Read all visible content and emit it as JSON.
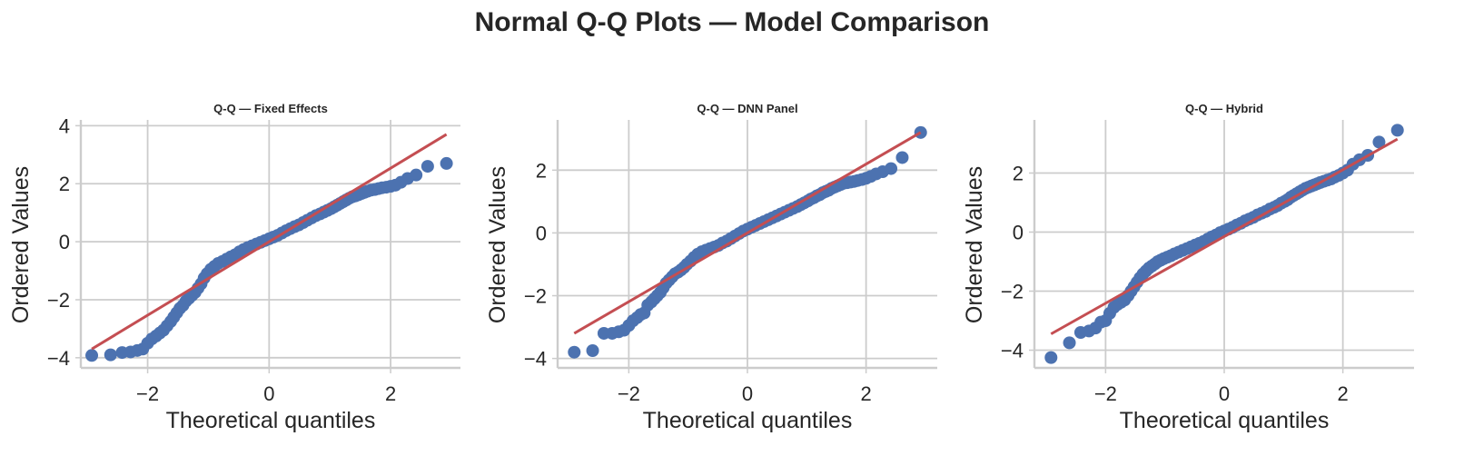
{
  "figure": {
    "suptitle": "Normal Q-Q Plots — Model Comparison",
    "marker_color": "#4c72b0",
    "line_color": "#c44e52",
    "grid_color": "#cccccc"
  },
  "chart_data": [
    {
      "type": "scatter",
      "title": "Q-Q — Fixed Effects",
      "xlabel": "Theoretical quantiles",
      "ylabel": "Ordered Values",
      "xlim": [
        -3.1,
        3.15
      ],
      "ylim": [
        -4.35,
        4.2
      ],
      "xticks": [
        -2,
        0,
        2
      ],
      "yticks": [
        -4,
        -2,
        0,
        2,
        4
      ],
      "xtick_labels": [
        "−2",
        "0",
        "2"
      ],
      "ytick_labels": [
        "−4",
        "−2",
        "0",
        "2",
        "4"
      ],
      "grid": true,
      "reference_line": {
        "x": [
          -2.92,
          2.92
        ],
        "y": [
          -3.7,
          3.7
        ]
      },
      "points": [
        [
          -2.92,
          -3.92
        ],
        [
          -2.61,
          -3.9
        ],
        [
          -2.42,
          -3.82
        ],
        [
          -2.28,
          -3.8
        ],
        [
          -2.17,
          -3.75
        ],
        [
          -2.08,
          -3.7
        ],
        [
          -2.0,
          -3.5
        ],
        [
          -1.93,
          -3.35
        ],
        [
          -1.86,
          -3.25
        ],
        [
          -1.8,
          -3.15
        ],
        [
          -1.74,
          -3.05
        ],
        [
          -1.68,
          -2.9
        ],
        [
          -1.62,
          -2.75
        ],
        [
          -1.57,
          -2.6
        ],
        [
          -1.52,
          -2.45
        ],
        [
          -1.47,
          -2.3
        ],
        [
          -1.42,
          -2.2
        ],
        [
          -1.37,
          -2.05
        ],
        [
          -1.32,
          -1.95
        ],
        [
          -1.27,
          -1.85
        ],
        [
          -1.22,
          -1.75
        ],
        [
          -1.17,
          -1.6
        ],
        [
          -1.12,
          -1.45
        ],
        [
          -1.07,
          -1.25
        ],
        [
          -1.02,
          -1.1
        ],
        [
          -0.96,
          -0.95
        ],
        [
          -0.9,
          -0.85
        ],
        [
          -0.84,
          -0.75
        ],
        [
          -0.77,
          -0.68
        ],
        [
          -0.7,
          -0.6
        ],
        [
          -0.63,
          -0.52
        ],
        [
          -0.56,
          -0.45
        ],
        [
          -0.49,
          -0.35
        ],
        [
          -0.42,
          -0.27
        ],
        [
          -0.35,
          -0.2
        ],
        [
          -0.28,
          -0.14
        ],
        [
          -0.21,
          -0.08
        ],
        [
          -0.14,
          -0.02
        ],
        [
          -0.07,
          0.04
        ],
        [
          0.0,
          0.1
        ],
        [
          0.07,
          0.16
        ],
        [
          0.14,
          0.22
        ],
        [
          0.21,
          0.3
        ],
        [
          0.28,
          0.38
        ],
        [
          0.35,
          0.45
        ],
        [
          0.42,
          0.52
        ],
        [
          0.49,
          0.58
        ],
        [
          0.56,
          0.66
        ],
        [
          0.63,
          0.74
        ],
        [
          0.7,
          0.82
        ],
        [
          0.77,
          0.9
        ],
        [
          0.84,
          0.96
        ],
        [
          0.9,
          1.02
        ],
        [
          0.96,
          1.08
        ],
        [
          1.02,
          1.14
        ],
        [
          1.07,
          1.2
        ],
        [
          1.12,
          1.26
        ],
        [
          1.17,
          1.32
        ],
        [
          1.22,
          1.38
        ],
        [
          1.27,
          1.44
        ],
        [
          1.32,
          1.5
        ],
        [
          1.37,
          1.55
        ],
        [
          1.42,
          1.58
        ],
        [
          1.47,
          1.62
        ],
        [
          1.52,
          1.66
        ],
        [
          1.57,
          1.7
        ],
        [
          1.62,
          1.74
        ],
        [
          1.68,
          1.78
        ],
        [
          1.74,
          1.8
        ],
        [
          1.8,
          1.83
        ],
        [
          1.86,
          1.86
        ],
        [
          1.93,
          1.88
        ],
        [
          2.0,
          1.91
        ],
        [
          2.08,
          1.95
        ],
        [
          2.17,
          2.05
        ],
        [
          2.28,
          2.18
        ],
        [
          2.42,
          2.3
        ],
        [
          2.61,
          2.6
        ],
        [
          2.92,
          2.7
        ]
      ]
    },
    {
      "type": "scatter",
      "title": "Q-Q — DNN Panel",
      "xlabel": "Theoretical quantiles",
      "ylabel": "Ordered Values",
      "xlim": [
        -3.2,
        3.2
      ],
      "ylim": [
        -4.3,
        3.6
      ],
      "xticks": [
        -2,
        0,
        2
      ],
      "yticks": [
        -4,
        -2,
        0,
        2
      ],
      "xtick_labels": [
        "−2",
        "0",
        "2"
      ],
      "ytick_labels": [
        "−4",
        "−2",
        "0",
        "2"
      ],
      "grid": true,
      "reference_line": {
        "x": [
          -2.92,
          2.92
        ],
        "y": [
          -3.2,
          3.2
        ]
      },
      "points": [
        [
          -2.92,
          -3.8
        ],
        [
          -2.61,
          -3.75
        ],
        [
          -2.42,
          -3.2
        ],
        [
          -2.28,
          -3.2
        ],
        [
          -2.17,
          -3.15
        ],
        [
          -2.08,
          -3.1
        ],
        [
          -2.0,
          -2.95
        ],
        [
          -1.93,
          -2.8
        ],
        [
          -1.86,
          -2.7
        ],
        [
          -1.8,
          -2.6
        ],
        [
          -1.74,
          -2.55
        ],
        [
          -1.68,
          -2.3
        ],
        [
          -1.62,
          -2.2
        ],
        [
          -1.57,
          -2.1
        ],
        [
          -1.52,
          -2.0
        ],
        [
          -1.47,
          -1.9
        ],
        [
          -1.42,
          -1.75
        ],
        [
          -1.37,
          -1.6
        ],
        [
          -1.32,
          -1.5
        ],
        [
          -1.27,
          -1.4
        ],
        [
          -1.22,
          -1.3
        ],
        [
          -1.17,
          -1.25
        ],
        [
          -1.12,
          -1.18
        ],
        [
          -1.07,
          -1.1
        ],
        [
          -1.02,
          -1.0
        ],
        [
          -0.96,
          -0.9
        ],
        [
          -0.9,
          -0.78
        ],
        [
          -0.84,
          -0.68
        ],
        [
          -0.77,
          -0.6
        ],
        [
          -0.7,
          -0.55
        ],
        [
          -0.63,
          -0.5
        ],
        [
          -0.56,
          -0.45
        ],
        [
          -0.49,
          -0.4
        ],
        [
          -0.42,
          -0.32
        ],
        [
          -0.35,
          -0.26
        ],
        [
          -0.28,
          -0.18
        ],
        [
          -0.21,
          -0.1
        ],
        [
          -0.14,
          -0.02
        ],
        [
          -0.07,
          0.06
        ],
        [
          0.0,
          0.12
        ],
        [
          0.07,
          0.18
        ],
        [
          0.14,
          0.24
        ],
        [
          0.21,
          0.3
        ],
        [
          0.28,
          0.36
        ],
        [
          0.35,
          0.42
        ],
        [
          0.42,
          0.48
        ],
        [
          0.49,
          0.54
        ],
        [
          0.56,
          0.6
        ],
        [
          0.63,
          0.66
        ],
        [
          0.7,
          0.72
        ],
        [
          0.77,
          0.78
        ],
        [
          0.84,
          0.84
        ],
        [
          0.9,
          0.9
        ],
        [
          0.96,
          0.96
        ],
        [
          1.02,
          1.02
        ],
        [
          1.07,
          1.08
        ],
        [
          1.12,
          1.12
        ],
        [
          1.17,
          1.18
        ],
        [
          1.22,
          1.22
        ],
        [
          1.27,
          1.28
        ],
        [
          1.32,
          1.32
        ],
        [
          1.37,
          1.36
        ],
        [
          1.42,
          1.42
        ],
        [
          1.47,
          1.46
        ],
        [
          1.52,
          1.5
        ],
        [
          1.57,
          1.54
        ],
        [
          1.62,
          1.58
        ],
        [
          1.68,
          1.6
        ],
        [
          1.74,
          1.62
        ],
        [
          1.8,
          1.64
        ],
        [
          1.86,
          1.67
        ],
        [
          1.93,
          1.7
        ],
        [
          2.0,
          1.74
        ],
        [
          2.08,
          1.8
        ],
        [
          2.17,
          1.88
        ],
        [
          2.28,
          1.95
        ],
        [
          2.42,
          2.05
        ],
        [
          2.61,
          2.4
        ],
        [
          2.92,
          3.2
        ]
      ]
    },
    {
      "type": "scatter",
      "title": "Q-Q — Hybrid",
      "xlabel": "Theoretical quantiles",
      "ylabel": "Ordered Values",
      "xlim": [
        -3.2,
        3.2
      ],
      "ylim": [
        -4.6,
        3.8
      ],
      "xticks": [
        -2,
        0,
        2
      ],
      "yticks": [
        -4,
        -2,
        0,
        2
      ],
      "xtick_labels": [
        "−2",
        "0",
        "2"
      ],
      "ytick_labels": [
        "−4",
        "−2",
        "0",
        "2"
      ],
      "grid": true,
      "reference_line": {
        "x": [
          -2.92,
          2.92
        ],
        "y": [
          -3.45,
          3.15
        ]
      },
      "points": [
        [
          -2.92,
          -4.25
        ],
        [
          -2.61,
          -3.75
        ],
        [
          -2.42,
          -3.4
        ],
        [
          -2.28,
          -3.35
        ],
        [
          -2.17,
          -3.25
        ],
        [
          -2.08,
          -3.05
        ],
        [
          -2.0,
          -3.0
        ],
        [
          -1.93,
          -2.75
        ],
        [
          -1.86,
          -2.55
        ],
        [
          -1.8,
          -2.45
        ],
        [
          -1.74,
          -2.38
        ],
        [
          -1.68,
          -2.3
        ],
        [
          -1.62,
          -2.15
        ],
        [
          -1.57,
          -2.0
        ],
        [
          -1.52,
          -1.85
        ],
        [
          -1.47,
          -1.7
        ],
        [
          -1.42,
          -1.55
        ],
        [
          -1.37,
          -1.42
        ],
        [
          -1.32,
          -1.32
        ],
        [
          -1.27,
          -1.22
        ],
        [
          -1.22,
          -1.15
        ],
        [
          -1.17,
          -1.08
        ],
        [
          -1.12,
          -1.0
        ],
        [
          -1.07,
          -0.95
        ],
        [
          -1.02,
          -0.9
        ],
        [
          -0.96,
          -0.85
        ],
        [
          -0.9,
          -0.8
        ],
        [
          -0.84,
          -0.74
        ],
        [
          -0.77,
          -0.68
        ],
        [
          -0.7,
          -0.62
        ],
        [
          -0.63,
          -0.56
        ],
        [
          -0.56,
          -0.5
        ],
        [
          -0.49,
          -0.44
        ],
        [
          -0.42,
          -0.38
        ],
        [
          -0.35,
          -0.32
        ],
        [
          -0.28,
          -0.24
        ],
        [
          -0.21,
          -0.16
        ],
        [
          -0.14,
          -0.1
        ],
        [
          -0.07,
          -0.02
        ],
        [
          0.0,
          0.04
        ],
        [
          0.07,
          0.1
        ],
        [
          0.14,
          0.16
        ],
        [
          0.21,
          0.24
        ],
        [
          0.28,
          0.3
        ],
        [
          0.35,
          0.38
        ],
        [
          0.42,
          0.44
        ],
        [
          0.49,
          0.5
        ],
        [
          0.56,
          0.58
        ],
        [
          0.63,
          0.64
        ],
        [
          0.7,
          0.7
        ],
        [
          0.77,
          0.78
        ],
        [
          0.84,
          0.84
        ],
        [
          0.9,
          0.9
        ],
        [
          0.96,
          0.98
        ],
        [
          1.02,
          1.04
        ],
        [
          1.07,
          1.1
        ],
        [
          1.12,
          1.18
        ],
        [
          1.17,
          1.24
        ],
        [
          1.22,
          1.3
        ],
        [
          1.27,
          1.36
        ],
        [
          1.32,
          1.42
        ],
        [
          1.37,
          1.48
        ],
        [
          1.42,
          1.52
        ],
        [
          1.47,
          1.56
        ],
        [
          1.52,
          1.6
        ],
        [
          1.57,
          1.64
        ],
        [
          1.62,
          1.68
        ],
        [
          1.68,
          1.72
        ],
        [
          1.74,
          1.76
        ],
        [
          1.8,
          1.8
        ],
        [
          1.86,
          1.86
        ],
        [
          1.93,
          1.92
        ],
        [
          2.0,
          2.0
        ],
        [
          2.08,
          2.1
        ],
        [
          2.17,
          2.3
        ],
        [
          2.28,
          2.45
        ],
        [
          2.42,
          2.6
        ],
        [
          2.61,
          3.05
        ],
        [
          2.92,
          3.45
        ]
      ]
    }
  ]
}
